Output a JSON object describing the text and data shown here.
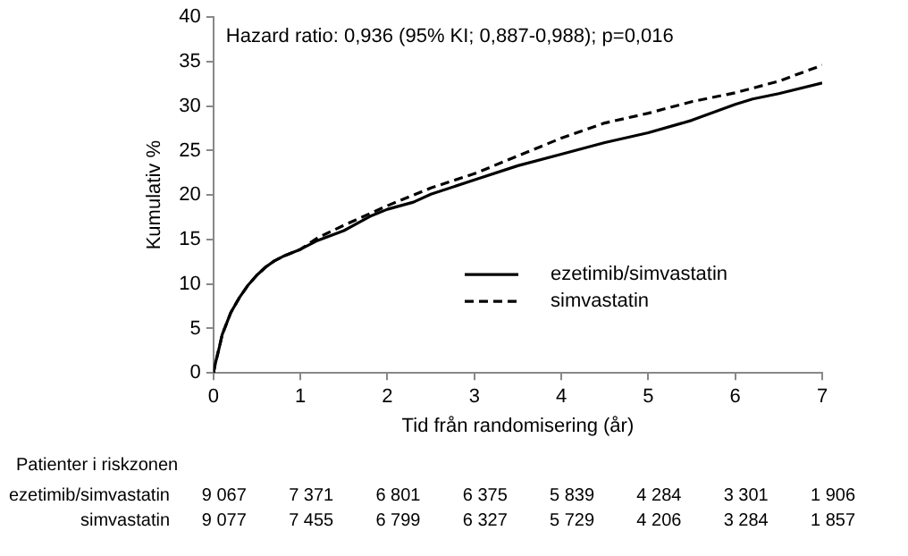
{
  "chart_data": {
    "type": "line",
    "xlabel": "Tid från randomisering (år)",
    "ylabel": "Kumulativ %",
    "xlim": [
      0,
      7
    ],
    "xticks": [
      0,
      1,
      2,
      3,
      4,
      5,
      6,
      7
    ],
    "ylim": [
      0,
      40
    ],
    "yticks": [
      0,
      5,
      10,
      15,
      20,
      25,
      30,
      35,
      40
    ],
    "grid": false,
    "legend": "bottom right",
    "marker": "none",
    "series": [
      {
        "name": "ezetimib/simvastatin",
        "color": "#000000",
        "line_style": "solid",
        "x": [
          0,
          0.02,
          0.07,
          0.1,
          0.2,
          0.3,
          0.4,
          0.5,
          0.6,
          0.7,
          0.8,
          1,
          1.2,
          1.5,
          1.8,
          2,
          2.3,
          2.5,
          3,
          3.5,
          4,
          4.5,
          5,
          5.5,
          6,
          6.2,
          6.5,
          7
        ],
        "values": [
          0,
          1,
          3,
          4.3,
          6.8,
          8.5,
          9.9,
          11,
          11.9,
          12.6,
          13.1,
          13.9,
          14.9,
          16,
          17.6,
          18.4,
          19.2,
          20.1,
          21.7,
          23.3,
          24.6,
          25.9,
          27,
          28.4,
          30.2,
          30.8,
          31.4,
          32.6
        ]
      },
      {
        "name": "simvastatin",
        "color": "#000000",
        "line_style": "dashed",
        "x": [
          0,
          0.02,
          0.07,
          0.1,
          0.2,
          0.3,
          0.4,
          0.5,
          0.6,
          0.7,
          0.8,
          1,
          1.2,
          1.5,
          2,
          2.5,
          3,
          3.5,
          4,
          4.5,
          5,
          5.5,
          6,
          6.5,
          7
        ],
        "values": [
          0,
          1,
          3,
          4.3,
          6.8,
          8.5,
          9.9,
          11,
          11.9,
          12.6,
          13.1,
          13.9,
          15.2,
          16.6,
          18.8,
          20.8,
          22.4,
          24.4,
          26.4,
          28.1,
          29.2,
          30.5,
          31.5,
          32.8,
          34.6
        ]
      }
    ],
    "annotations": [
      "Hazard ratio: 0,936 (95% KI; 0,887-0,988); p=0,016",
      "Patienter i riskzonen",
      "ezetimib/simvastatin",
      "9 067",
      "7 371",
      "6 801",
      "6 375",
      "5 839",
      "4 284",
      "3 301",
      "1 906",
      "simvastatin",
      "9 077",
      "7 455",
      "6 799",
      "6 327",
      "5 729",
      "4 206",
      "3 284",
      "1 857"
    ]
  }
}
